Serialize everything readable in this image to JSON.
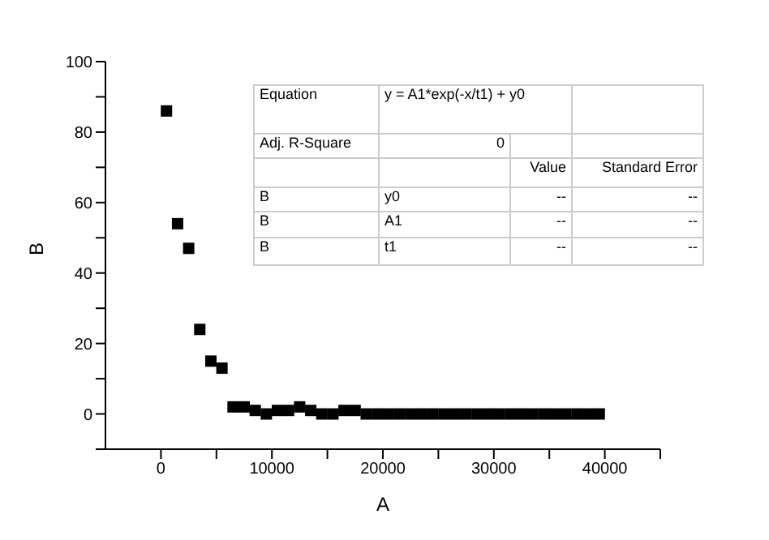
{
  "chart_data": {
    "type": "scatter",
    "xlabel": "A",
    "ylabel": "B",
    "marker": "square",
    "grid": false,
    "legend": false,
    "x": [
      500,
      1500,
      2500,
      3500,
      4500,
      5500,
      6500,
      7500,
      8500,
      9500,
      10500,
      11500,
      12500,
      13500,
      14500,
      15500,
      16500,
      17500,
      18500,
      19500,
      20500,
      21500,
      22500,
      23500,
      24500,
      25500,
      26500,
      27500,
      28500,
      29500,
      30500,
      31500,
      32500,
      33500,
      34500,
      35500,
      36500,
      37500,
      38500,
      39500
    ],
    "series": [
      {
        "color": "#000000",
        "values": [
          86,
          54,
          47,
          24,
          15,
          13,
          2,
          2,
          1,
          0,
          1,
          1,
          2,
          1,
          0,
          0,
          1,
          1,
          0,
          0,
          0,
          0,
          0,
          0,
          0,
          0,
          0,
          0,
          0,
          0,
          0,
          0,
          0,
          0,
          0,
          0,
          0,
          0,
          0,
          0
        ]
      }
    ],
    "xlim": [
      -5000,
      45000
    ],
    "xticks": [
      0,
      {
        "value": 5000,
        "label": null
      },
      10000,
      {
        "value": 15000,
        "label": null
      },
      20000,
      {
        "value": 25000,
        "label": null
      },
      30000,
      {
        "value": 35000,
        "label": null
      },
      40000,
      {
        "value": 45000,
        "label": null
      }
    ],
    "ylim": [
      -10,
      100
    ],
    "yticks": [
      {
        "value": -10,
        "label": null
      },
      0,
      {
        "value": 10,
        "label": null
      },
      20,
      {
        "value": 30,
        "label": null
      },
      40,
      {
        "value": 50,
        "label": null
      },
      60,
      {
        "value": 70,
        "label": null
      },
      80,
      {
        "value": 90,
        "label": null
      },
      100
    ],
    "annotations": [
      "Equation",
      "y = A1*exp(-x/t1) + y0",
      "Adj. R-Square",
      "0",
      "Value",
      "Standard Error",
      "B",
      "y0",
      "--",
      "--",
      "B",
      "A1",
      "--",
      "--",
      "B",
      "t1",
      "--",
      "--"
    ]
  }
}
